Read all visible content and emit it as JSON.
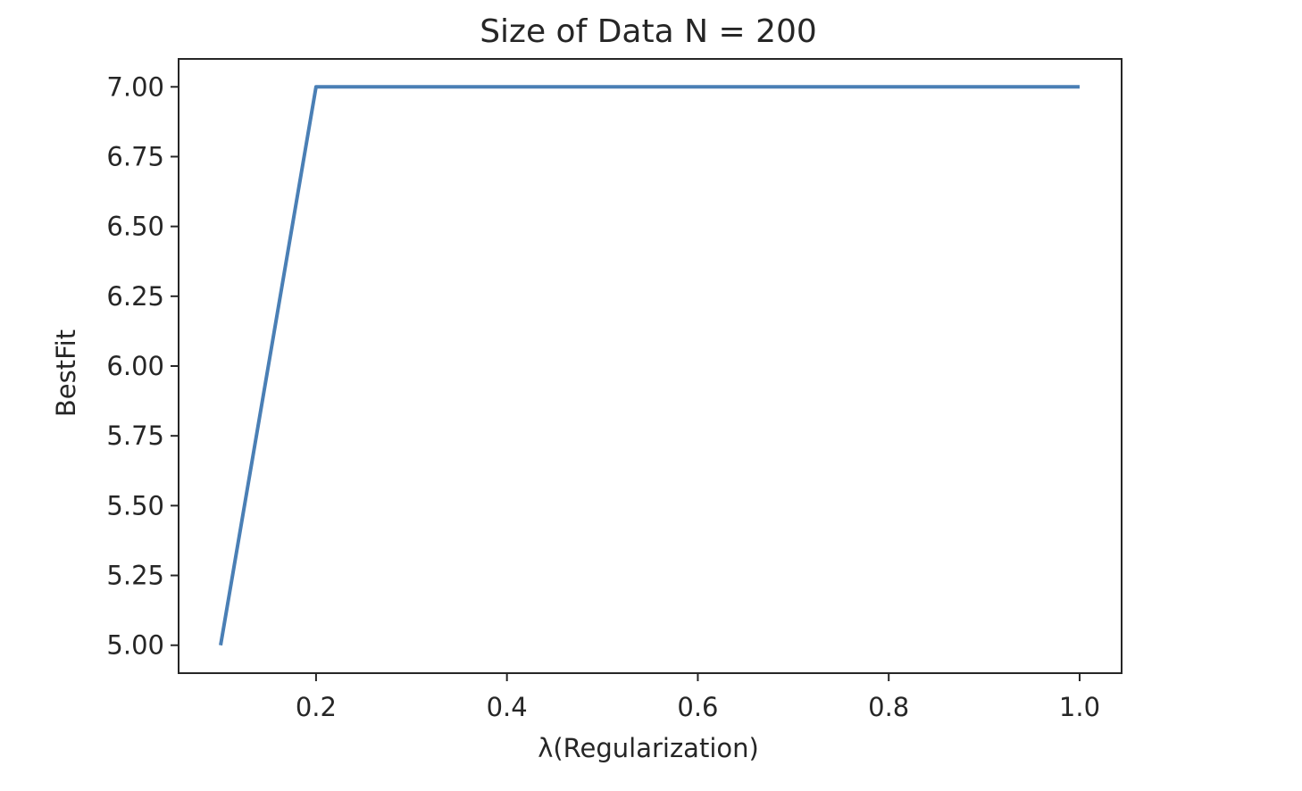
{
  "chart_data": {
    "type": "line",
    "title": "Size of Data N = 200",
    "xlabel": "λ(Regularization)",
    "ylabel": "BestFit",
    "xlim": [
      0.056,
      1.044
    ],
    "ylim": [
      4.9,
      7.1
    ],
    "xticks": [
      0.2,
      0.4,
      0.6,
      0.8,
      1.0
    ],
    "xtick_labels": [
      "0.2",
      "0.4",
      "0.6",
      "0.8",
      "1.0"
    ],
    "yticks": [
      5.0,
      5.25,
      5.5,
      5.75,
      6.0,
      6.25,
      6.5,
      6.75,
      7.0
    ],
    "ytick_labels": [
      "5.00",
      "5.25",
      "5.50",
      "5.75",
      "6.00",
      "6.25",
      "6.50",
      "6.75",
      "7.00"
    ],
    "grid": false,
    "series": [
      {
        "color": "#4a7fb5",
        "x": [
          0.1,
          0.2,
          0.3,
          0.4,
          0.5,
          0.6,
          0.7,
          0.8,
          0.9,
          1.0
        ],
        "y": [
          5,
          7,
          7,
          7,
          7,
          7,
          7,
          7,
          7,
          7
        ]
      }
    ]
  }
}
